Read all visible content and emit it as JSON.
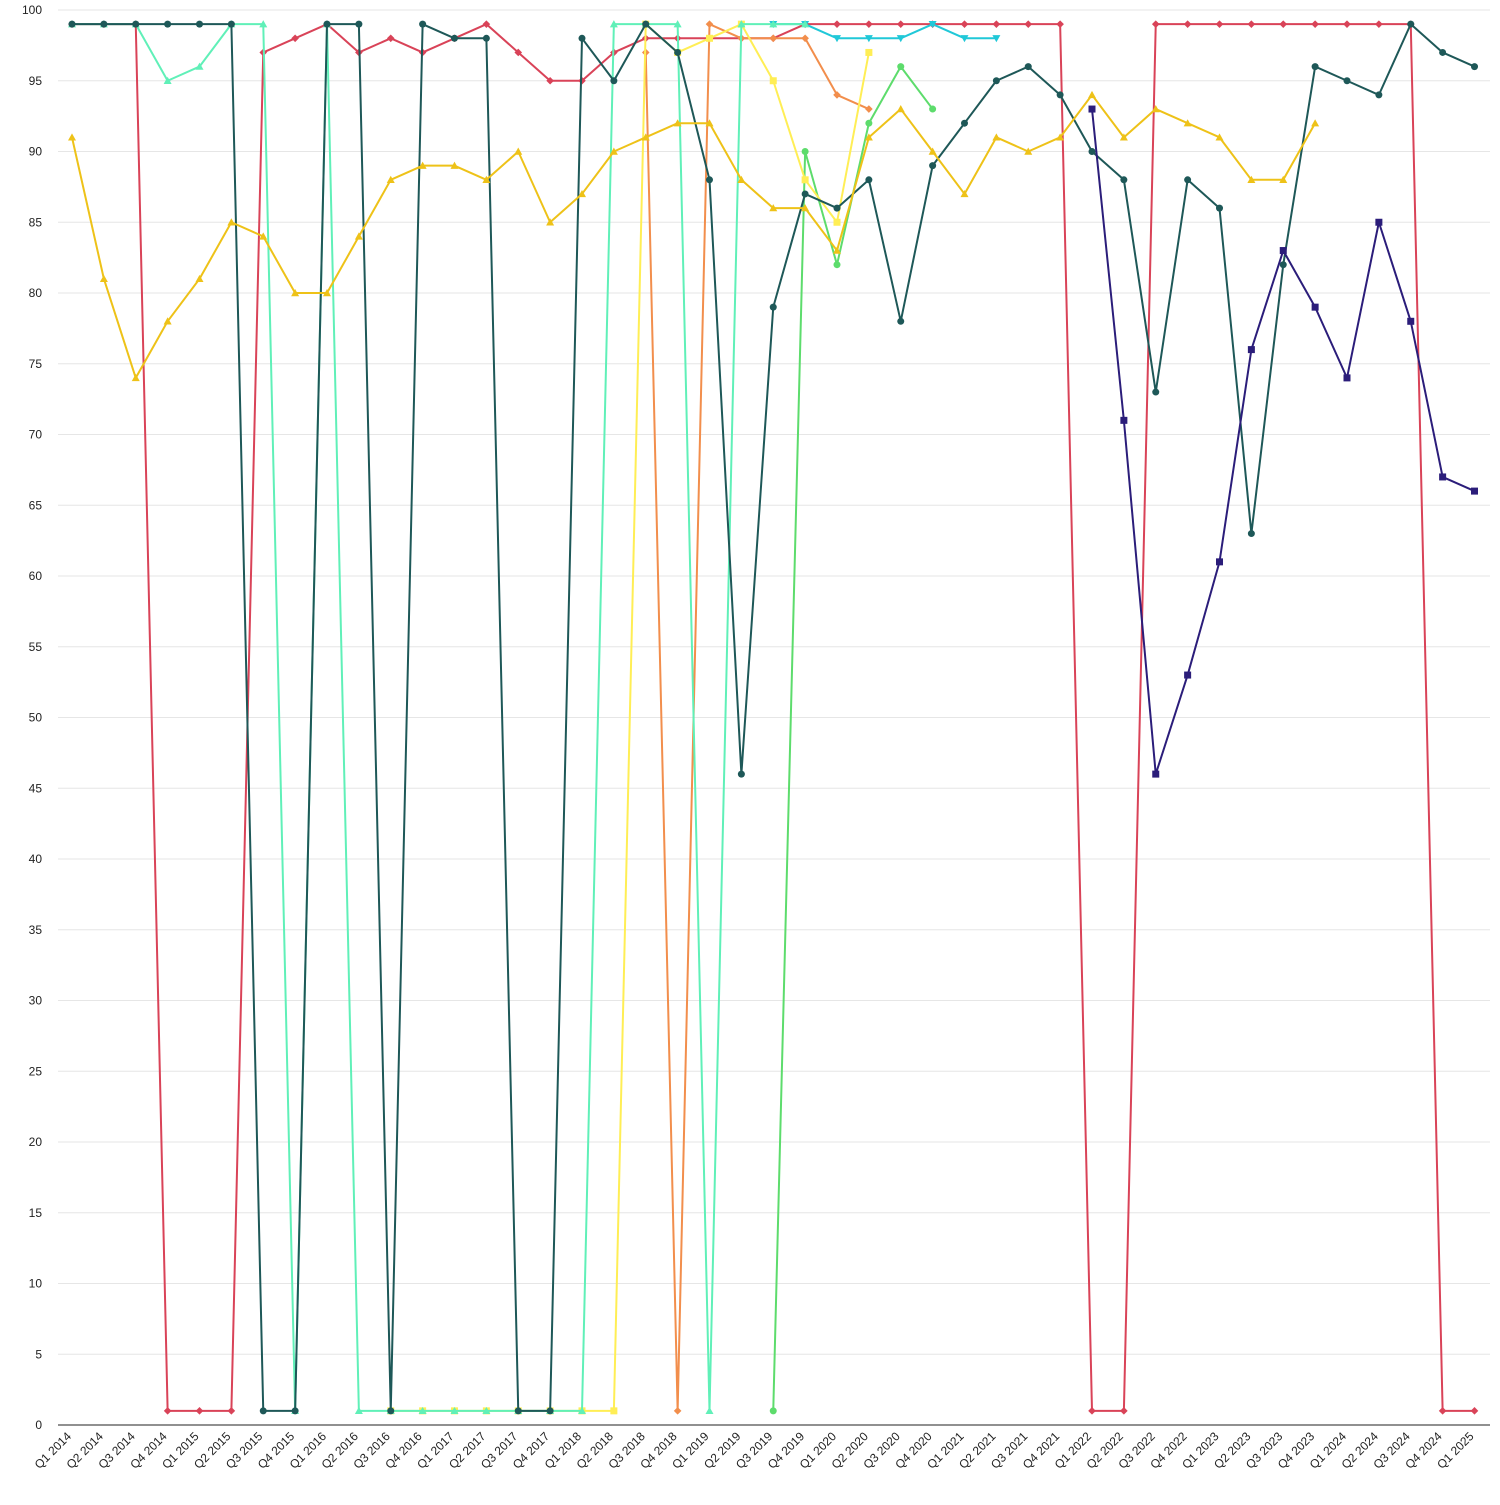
{
  "chart_data": {
    "type": "line",
    "title": "",
    "xlabel": "",
    "ylabel": "",
    "ylim": [
      0,
      100
    ],
    "yticks": [
      0,
      5,
      10,
      15,
      20,
      25,
      30,
      35,
      40,
      45,
      50,
      55,
      60,
      65,
      70,
      75,
      80,
      85,
      90,
      95,
      100
    ],
    "grid": "horizontal",
    "legend": "none",
    "categories": [
      "Q1 2014",
      "Q2 2014",
      "Q3 2014",
      "Q4 2014",
      "Q1 2015",
      "Q2 2015",
      "Q3 2015",
      "Q4 2015",
      "Q1 2016",
      "Q2 2016",
      "Q3 2016",
      "Q4 2016",
      "Q1 2017",
      "Q2 2017",
      "Q3 2017",
      "Q4 2017",
      "Q1 2018",
      "Q2 2018",
      "Q3 2018",
      "Q4 2018",
      "Q1 2019",
      "Q2 2019",
      "Q3 2019",
      "Q4 2019",
      "Q1 2020",
      "Q2 2020",
      "Q3 2020",
      "Q4 2020",
      "Q1 2021",
      "Q2 2021",
      "Q3 2021",
      "Q4 2021",
      "Q1 2022",
      "Q2 2022",
      "Q3 2022",
      "Q4 2022",
      "Q1 2023",
      "Q2 2023",
      "Q3 2023",
      "Q4 2023",
      "Q1 2024",
      "Q2 2024",
      "Q3 2024",
      "Q4 2024",
      "Q1 2025"
    ],
    "series": [
      {
        "color": "#d94358",
        "marker": "diamond",
        "values": [
          99,
          99,
          99,
          1,
          1,
          1,
          97,
          98,
          99,
          97,
          98,
          97,
          98,
          99,
          97,
          95,
          95,
          97,
          98,
          98,
          98,
          98,
          98,
          99,
          99,
          99,
          99,
          99,
          99,
          99,
          99,
          99,
          1,
          1,
          99,
          99,
          99,
          99,
          99,
          99,
          99,
          99,
          99,
          1,
          1
        ]
      },
      {
        "color": "#f28e4c",
        "marker": "diamond",
        "values": [
          null,
          null,
          null,
          null,
          null,
          null,
          null,
          null,
          null,
          null,
          null,
          null,
          null,
          null,
          null,
          null,
          null,
          null,
          97,
          1,
          99,
          98,
          98,
          98,
          94,
          93,
          null,
          null,
          null,
          null,
          null,
          null,
          null,
          null,
          null,
          null,
          null,
          null,
          null,
          null,
          null,
          null,
          null,
          null,
          null
        ]
      },
      {
        "color": "#20c8d8",
        "marker": "triangle-down",
        "values": [
          null,
          null,
          null,
          null,
          null,
          null,
          null,
          null,
          null,
          null,
          null,
          null,
          null,
          null,
          null,
          null,
          null,
          null,
          null,
          null,
          null,
          null,
          99,
          99,
          98,
          98,
          98,
          99,
          98,
          98,
          null,
          null,
          null,
          null,
          null,
          null,
          null,
          null,
          null,
          null,
          null,
          null,
          null,
          null,
          null
        ]
      },
      {
        "color": "#5ddc6c",
        "marker": "circle",
        "values": [
          null,
          null,
          null,
          null,
          null,
          null,
          null,
          null,
          null,
          null,
          null,
          null,
          null,
          null,
          null,
          null,
          null,
          null,
          null,
          null,
          null,
          null,
          1,
          90,
          82,
          92,
          96,
          93,
          null,
          null,
          null,
          null,
          null,
          null,
          null,
          null,
          null,
          null,
          null,
          null,
          null,
          null,
          null,
          null,
          null
        ]
      },
      {
        "color": "#ffee55",
        "marker": "square",
        "values": [
          null,
          null,
          null,
          null,
          null,
          null,
          null,
          null,
          null,
          null,
          1,
          1,
          1,
          1,
          1,
          1,
          1,
          1,
          99,
          97,
          98,
          99,
          95,
          88,
          85,
          97,
          null,
          null,
          null,
          null,
          null,
          null,
          null,
          null,
          null,
          null,
          null,
          null,
          null,
          null,
          null,
          null,
          null,
          null,
          null
        ]
      },
      {
        "color": "#60f0b8",
        "marker": "triangle",
        "values": [
          99,
          99,
          99,
          95,
          96,
          99,
          99,
          1,
          99,
          1,
          1,
          1,
          1,
          1,
          1,
          1,
          1,
          99,
          99,
          99,
          1,
          99,
          99,
          99,
          null,
          null,
          null,
          null,
          null,
          null,
          null,
          null,
          null,
          null,
          null,
          null,
          null,
          null,
          null,
          null,
          null,
          null,
          null,
          null,
          null
        ]
      },
      {
        "color": "#1e5858",
        "marker": "circle",
        "values": [
          99,
          99,
          99,
          99,
          99,
          99,
          1,
          1,
          99,
          99,
          1,
          99,
          98,
          98,
          1,
          1,
          98,
          95,
          99,
          97,
          88,
          46,
          79,
          87,
          86,
          88,
          78,
          89,
          92,
          95,
          96,
          94,
          90,
          88,
          73,
          88,
          86,
          63,
          82,
          96,
          95,
          94,
          99,
          97,
          96
        ]
      },
      {
        "color": "#eec218",
        "marker": "triangle",
        "values": [
          91,
          81,
          74,
          78,
          81,
          85,
          84,
          80,
          80,
          84,
          88,
          89,
          89,
          88,
          90,
          85,
          87,
          90,
          91,
          92,
          92,
          88,
          86,
          86,
          83,
          91,
          93,
          90,
          87,
          91,
          90,
          91,
          94,
          91,
          93,
          92,
          91,
          88,
          88,
          92,
          null,
          null,
          null,
          null,
          null
        ]
      },
      {
        "color": "#2b1d7a",
        "marker": "square",
        "values": [
          null,
          null,
          null,
          null,
          null,
          null,
          null,
          null,
          null,
          null,
          null,
          null,
          null,
          null,
          null,
          null,
          null,
          null,
          null,
          null,
          null,
          null,
          null,
          null,
          null,
          null,
          null,
          null,
          null,
          null,
          null,
          null,
          93,
          71,
          46,
          53,
          61,
          76,
          83,
          79,
          74,
          85,
          78,
          67,
          66
        ]
      }
    ]
  }
}
